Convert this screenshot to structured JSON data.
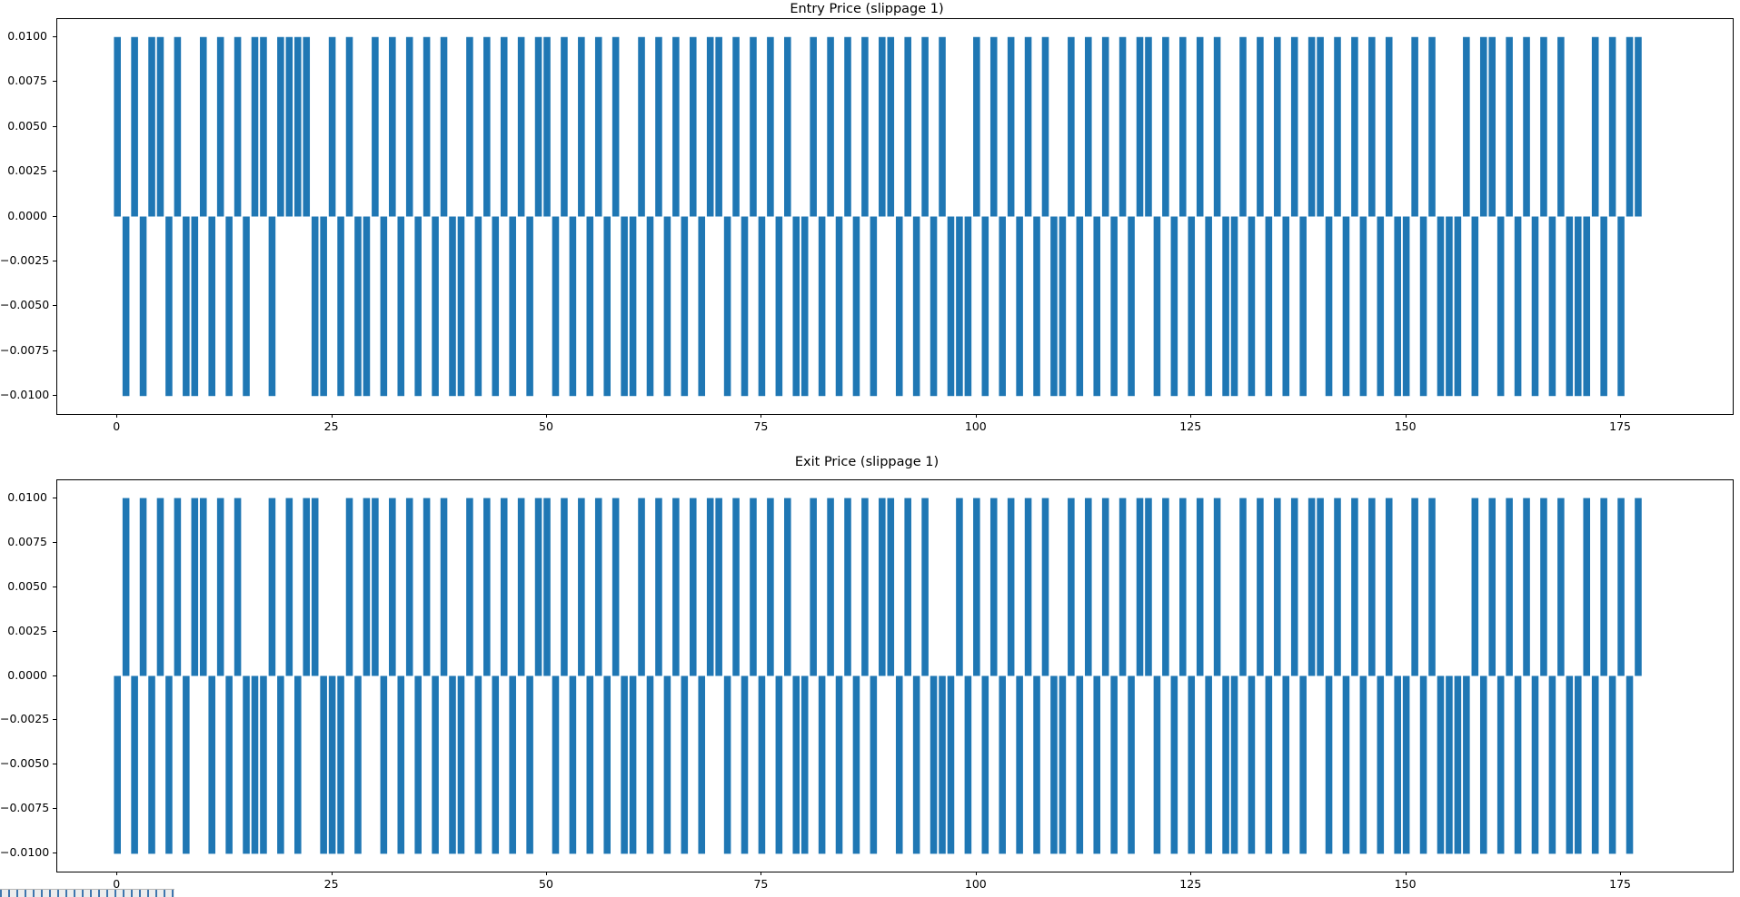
{
  "window": {
    "background": "#ffffff"
  },
  "bottom_strip": {
    "bg": "#ececec",
    "mark_color": "#3f76ae"
  },
  "chart_data": [
    {
      "type": "bar",
      "title": "Entry Price (slippage 1)",
      "xlabel": "",
      "ylabel": "",
      "bar_color": "#1f77b4",
      "bar_width": 0.8,
      "grid": false,
      "legend": "none",
      "xlim": [
        -7,
        188
      ],
      "ylim": [
        -0.011,
        0.011
      ],
      "x_ticks": [
        0,
        25,
        50,
        75,
        100,
        125,
        150,
        175
      ],
      "x_tick_labels": [
        "0",
        "25",
        "50",
        "75",
        "100",
        "125",
        "150",
        "175"
      ],
      "y_ticks": [
        0.01,
        0.0075,
        0.005,
        0.0025,
        0,
        -0.0025,
        -0.005,
        -0.0075,
        -0.01
      ],
      "y_tick_labels": [
        "0.0100",
        "0.0075",
        "0.0050",
        "0.0025",
        "0.0000",
        "−0.0025",
        "−0.0050",
        "−0.0075",
        "−0.0100"
      ],
      "x_start": 0,
      "values": [
        0.01,
        -0.01,
        0.01,
        -0.01,
        0.01,
        0.01,
        -0.01,
        0.01,
        -0.01,
        -0.01,
        0.01,
        -0.01,
        0.01,
        -0.01,
        0.01,
        -0.01,
        0.01,
        0.01,
        -0.01,
        0.01,
        0.01,
        0.01,
        0.01,
        -0.01,
        -0.01,
        0.01,
        -0.01,
        0.01,
        -0.01,
        -0.01,
        0.01,
        -0.01,
        0.01,
        -0.01,
        0.01,
        -0.01,
        0.01,
        -0.01,
        0.01,
        -0.01,
        -0.01,
        0.01,
        -0.01,
        0.01,
        -0.01,
        0.01,
        -0.01,
        0.01,
        -0.01,
        0.01,
        0.01,
        -0.01,
        0.01,
        -0.01,
        0.01,
        -0.01,
        0.01,
        -0.01,
        0.01,
        -0.01,
        -0.01,
        0.01,
        -0.01,
        0.01,
        -0.01,
        0.01,
        -0.01,
        0.01,
        -0.01,
        0.01,
        0.01,
        -0.01,
        0.01,
        -0.01,
        0.01,
        -0.01,
        0.01,
        -0.01,
        0.01,
        -0.01,
        -0.01,
        0.01,
        -0.01,
        0.01,
        -0.01,
        0.01,
        -0.01,
        0.01,
        -0.01,
        0.01,
        0.01,
        -0.01,
        0.01,
        -0.01,
        0.01,
        -0.01,
        0.01,
        -0.01,
        -0.01,
        -0.01,
        0.01,
        -0.01,
        0.01,
        -0.01,
        0.01,
        -0.01,
        0.01,
        -0.01,
        0.01,
        -0.01,
        -0.01,
        0.01,
        -0.01,
        0.01,
        -0.01,
        0.01,
        -0.01,
        0.01,
        -0.01,
        0.01,
        0.01,
        -0.01,
        0.01,
        -0.01,
        0.01,
        -0.01,
        0.01,
        -0.01,
        0.01,
        -0.01,
        -0.01,
        0.01,
        -0.01,
        0.01,
        -0.01,
        0.01,
        -0.01,
        0.01,
        -0.01,
        0.01,
        0.01,
        -0.01,
        0.01,
        -0.01,
        0.01,
        -0.01,
        0.01,
        -0.01,
        0.01,
        -0.01,
        -0.01,
        0.01,
        -0.01,
        0.01,
        -0.01,
        -0.01,
        -0.01,
        0.01,
        -0.01,
        0.01,
        0.01,
        -0.01,
        0.01,
        -0.01,
        0.01,
        -0.01,
        0.01,
        -0.01,
        0.01,
        -0.01,
        -0.01,
        -0.01,
        0.01,
        -0.01,
        0.01,
        -0.01,
        0.01,
        0.01
      ]
    },
    {
      "type": "bar",
      "title": "Exit Price (slippage 1)",
      "xlabel": "",
      "ylabel": "",
      "bar_color": "#1f77b4",
      "bar_width": 0.8,
      "grid": false,
      "legend": "none",
      "xlim": [
        -7,
        188
      ],
      "ylim": [
        -0.011,
        0.011
      ],
      "x_ticks": [
        0,
        25,
        50,
        75,
        100,
        125,
        150,
        175
      ],
      "x_tick_labels": [
        "0",
        "25",
        "50",
        "75",
        "100",
        "125",
        "150",
        "175"
      ],
      "y_ticks": [
        0.01,
        0.0075,
        0.005,
        0.0025,
        0,
        -0.0025,
        -0.005,
        -0.0075,
        -0.01
      ],
      "y_tick_labels": [
        "0.0100",
        "0.0075",
        "0.0050",
        "0.0025",
        "0.0000",
        "−0.0025",
        "−0.0050",
        "−0.0075",
        "−0.0100"
      ],
      "x_start": 0,
      "values": [
        -0.01,
        0.01,
        -0.01,
        0.01,
        -0.01,
        0.01,
        -0.01,
        0.01,
        -0.01,
        0.01,
        0.01,
        -0.01,
        0.01,
        -0.01,
        0.01,
        -0.01,
        -0.01,
        -0.01,
        0.01,
        -0.01,
        0.01,
        -0.01,
        0.01,
        0.01,
        -0.01,
        -0.01,
        -0.01,
        0.01,
        -0.01,
        0.01,
        0.01,
        -0.01,
        0.01,
        -0.01,
        0.01,
        -0.01,
        0.01,
        -0.01,
        0.01,
        -0.01,
        -0.01,
        0.01,
        -0.01,
        0.01,
        -0.01,
        0.01,
        -0.01,
        0.01,
        -0.01,
        0.01,
        0.01,
        -0.01,
        0.01,
        -0.01,
        0.01,
        -0.01,
        0.01,
        -0.01,
        0.01,
        -0.01,
        -0.01,
        0.01,
        -0.01,
        0.01,
        -0.01,
        0.01,
        -0.01,
        0.01,
        -0.01,
        0.01,
        0.01,
        -0.01,
        0.01,
        -0.01,
        0.01,
        -0.01,
        0.01,
        -0.01,
        0.01,
        -0.01,
        -0.01,
        0.01,
        -0.01,
        0.01,
        -0.01,
        0.01,
        -0.01,
        0.01,
        -0.01,
        0.01,
        0.01,
        -0.01,
        0.01,
        -0.01,
        0.01,
        -0.01,
        -0.01,
        -0.01,
        0.01,
        -0.01,
        0.01,
        -0.01,
        0.01,
        -0.01,
        0.01,
        -0.01,
        0.01,
        -0.01,
        0.01,
        -0.01,
        -0.01,
        0.01,
        -0.01,
        0.01,
        -0.01,
        0.01,
        -0.01,
        0.01,
        -0.01,
        0.01,
        0.01,
        -0.01,
        0.01,
        -0.01,
        0.01,
        -0.01,
        0.01,
        -0.01,
        0.01,
        -0.01,
        -0.01,
        0.01,
        -0.01,
        0.01,
        -0.01,
        0.01,
        -0.01,
        0.01,
        -0.01,
        0.01,
        0.01,
        -0.01,
        0.01,
        -0.01,
        0.01,
        -0.01,
        0.01,
        -0.01,
        0.01,
        -0.01,
        -0.01,
        0.01,
        -0.01,
        0.01,
        -0.01,
        -0.01,
        -0.01,
        -0.01,
        0.01,
        -0.01,
        0.01,
        -0.01,
        0.01,
        -0.01,
        0.01,
        -0.01,
        0.01,
        -0.01,
        0.01,
        -0.01,
        -0.01,
        0.01,
        -0.01,
        0.01,
        -0.01,
        0.01,
        -0.01,
        0.01
      ]
    }
  ]
}
